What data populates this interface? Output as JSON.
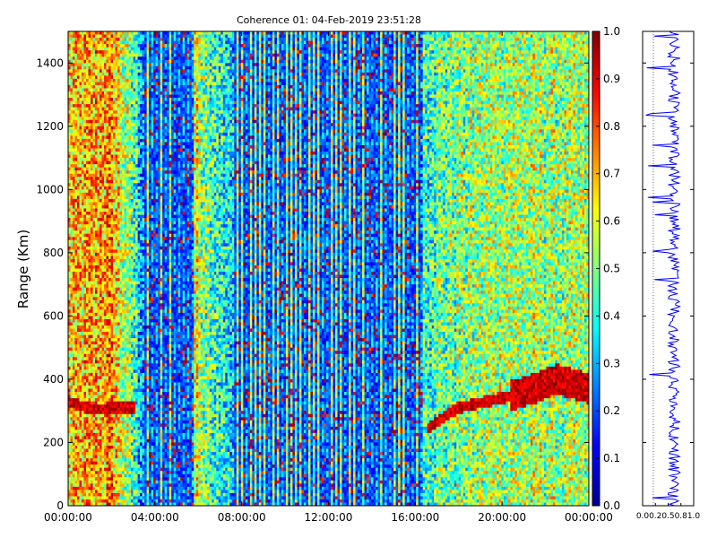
{
  "chart_data": [
    {
      "type": "heatmap",
      "title": "Coherence 01: 04-Feb-2019 23:51:28",
      "xlabel": "",
      "ylabel": "Range (Km)",
      "x_ticks": [
        "00:00:00",
        "04:00:00",
        "08:00:00",
        "12:00:00",
        "16:00:00",
        "20:00:00",
        "00:00:00"
      ],
      "xlim": [
        "00:00:00",
        "00:00:00 (+24h)"
      ],
      "y_ticks": [
        0,
        200,
        400,
        600,
        800,
        1000,
        1200,
        1400
      ],
      "ylim": [
        0,
        1500
      ],
      "colormap": "jet",
      "color_range": [
        0.0,
        1.0
      ],
      "grid": false,
      "features": {
        "high_coherence_layer_km": [
          [
            "00:00:00",
            330
          ],
          [
            "01:00:00",
            305
          ],
          [
            "03:00:00",
            310
          ],
          [
            "16:30:00",
            240
          ],
          [
            "18:00:00",
            310
          ],
          [
            "20:00:00",
            340
          ],
          [
            "21:30:00",
            370
          ],
          [
            "22:30:00",
            400
          ],
          [
            "00:00:00",
            370
          ]
        ],
        "low_coherence_bands": [
          [
            "03:30:00",
            "05:50:00"
          ],
          [
            "07:40:00",
            "16:20:00"
          ]
        ],
        "noise_level": [
          [
            "00:00:00",
            0.65
          ],
          [
            "02:00:00",
            0.72
          ],
          [
            "03:30:00",
            0.3
          ],
          [
            "05:50:00",
            0.6
          ],
          [
            "07:40:00",
            0.3
          ],
          [
            "16:20:00",
            0.45
          ],
          [
            "20:00:00",
            0.55
          ],
          [
            "00:00:00",
            0.52
          ]
        ]
      }
    },
    {
      "type": "colorbar",
      "ticks": [
        0.0,
        0.1,
        0.2,
        0.3,
        0.4,
        0.5,
        0.6,
        0.7,
        0.8,
        0.9,
        1.0
      ],
      "tick_labels": [
        "0.0",
        "0.1",
        "0.2",
        "0.3",
        "0.4",
        "0.5",
        "0.6",
        "0.7",
        "0.8",
        "0.9",
        "1.0"
      ],
      "range": [
        0.0,
        1.0
      ]
    },
    {
      "type": "line",
      "description_of_axes": "mean coherence vs range",
      "x_ticks": [
        0.0,
        0.25,
        0.5,
        0.75,
        1.0
      ],
      "x_tick_labels": [
        "0.0",
        "0.2",
        "0.5",
        "0.8",
        "1.0"
      ],
      "xlim": [
        0.0,
        1.0
      ],
      "ylim": [
        0,
        1500
      ],
      "color": "#0000ff",
      "mean_value": 0.62,
      "spread": 0.12
    }
  ]
}
